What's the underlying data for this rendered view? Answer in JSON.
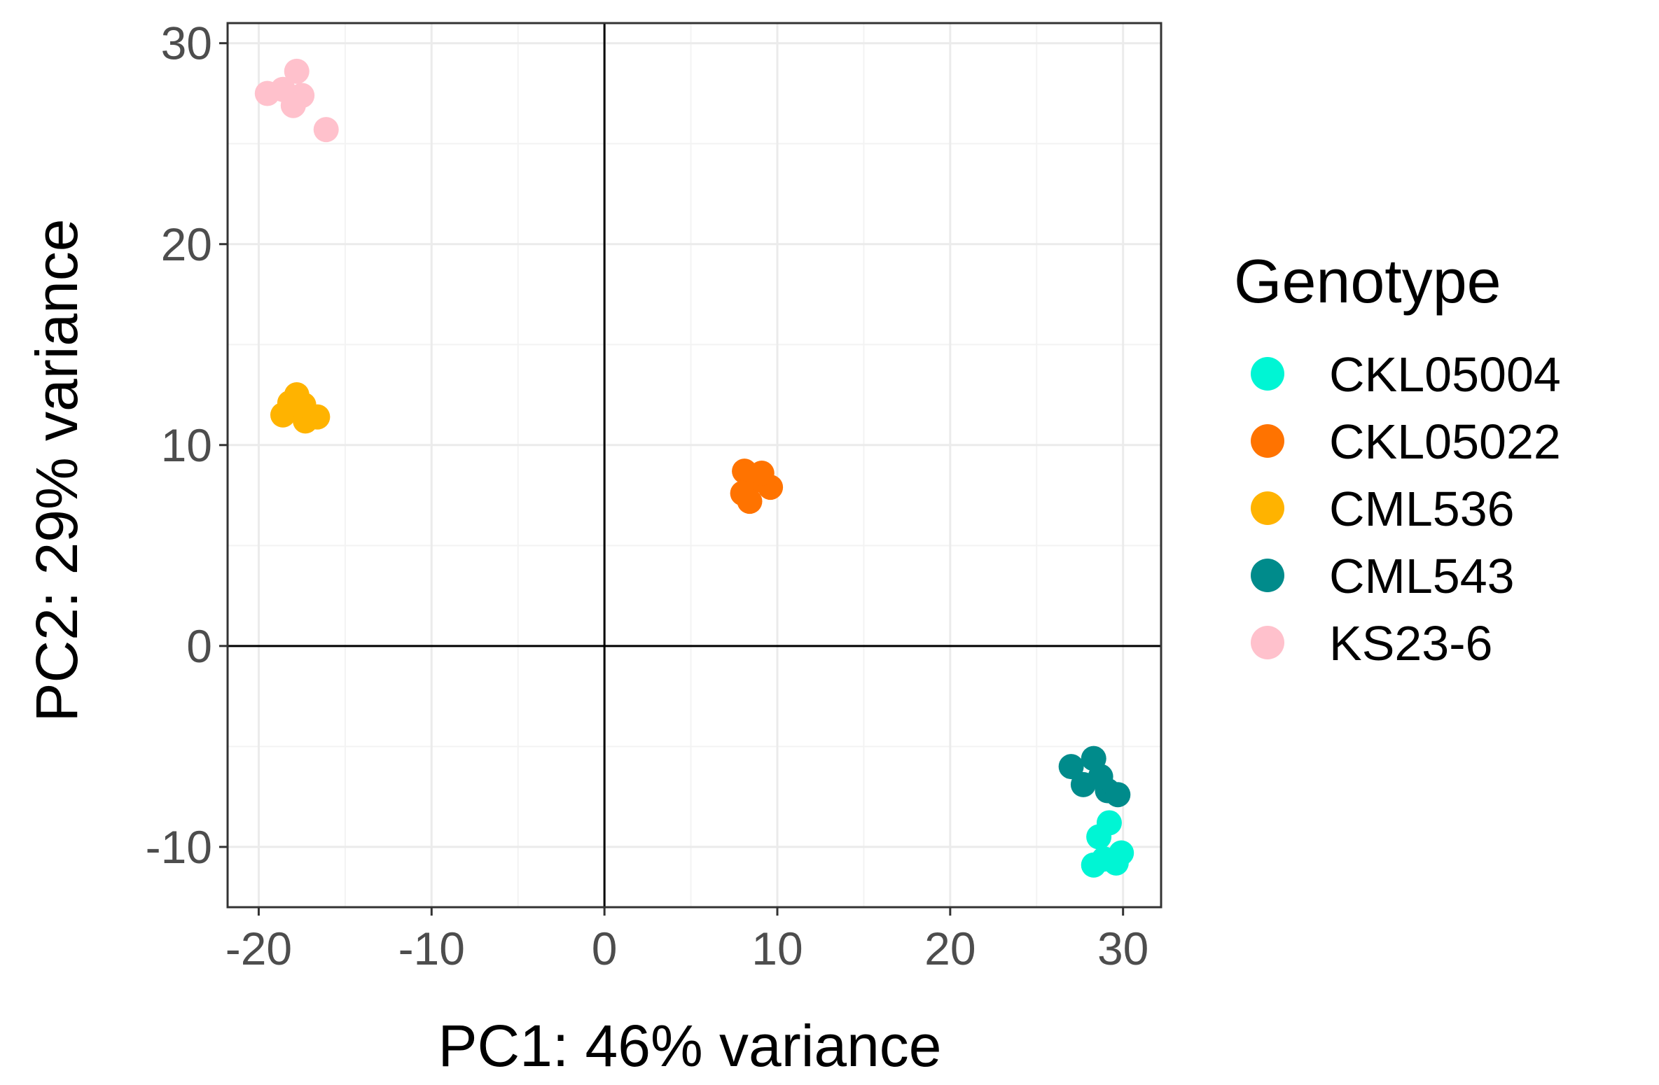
{
  "chart_data": {
    "type": "scatter",
    "title": "",
    "xlabel": "PC1: 46% variance",
    "ylabel": "PC2: 29% variance",
    "xlim": [
      -21.8,
      32.2
    ],
    "ylim": [
      -13,
      31
    ],
    "xticks": [
      -20,
      -10,
      0,
      10,
      20,
      30
    ],
    "yticks": [
      -10,
      0,
      10,
      20,
      30
    ],
    "xtick_labels": [
      "-20",
      "-10",
      "0",
      "10",
      "20",
      "30"
    ],
    "ytick_labels": [
      "-10",
      "0",
      "10",
      "20",
      "30"
    ],
    "reference_lines": {
      "x": 0,
      "y": 0
    },
    "grid": true,
    "legend": {
      "title": "Genotype",
      "position": "right"
    },
    "series": [
      {
        "name": "CKL05004",
        "color": "#00F5D4",
        "points": [
          [
            28.6,
            -9.5
          ],
          [
            28.9,
            -10.6
          ],
          [
            29.6,
            -10.8
          ],
          [
            29.9,
            -10.3
          ],
          [
            28.3,
            -10.9
          ],
          [
            29.2,
            -8.8
          ]
        ]
      },
      {
        "name": "CKL05022",
        "color": "#FF7300",
        "points": [
          [
            8.1,
            8.7
          ],
          [
            8.6,
            8.2
          ],
          [
            9.6,
            7.9
          ],
          [
            8.0,
            7.6
          ],
          [
            8.4,
            7.2
          ],
          [
            9.1,
            8.6
          ]
        ]
      },
      {
        "name": "CML536",
        "color": "#FFB300",
        "points": [
          [
            -17.8,
            12.5
          ],
          [
            -18.6,
            11.5
          ],
          [
            -17.3,
            11.2
          ],
          [
            -16.6,
            11.4
          ],
          [
            -17.4,
            12.0
          ],
          [
            -18.2,
            12.1
          ]
        ]
      },
      {
        "name": "CML543",
        "color": "#008B8B",
        "points": [
          [
            27.0,
            -6.0
          ],
          [
            28.3,
            -5.6
          ],
          [
            27.7,
            -6.9
          ],
          [
            29.1,
            -7.2
          ],
          [
            29.7,
            -7.4
          ],
          [
            28.7,
            -6.5
          ]
        ]
      },
      {
        "name": "KS23-6",
        "color": "#FFC1CC",
        "points": [
          [
            -19.5,
            27.5
          ],
          [
            -18.6,
            27.7
          ],
          [
            -17.8,
            28.6
          ],
          [
            -17.5,
            27.4
          ],
          [
            -18.0,
            26.9
          ],
          [
            -16.1,
            25.7
          ]
        ]
      }
    ]
  }
}
